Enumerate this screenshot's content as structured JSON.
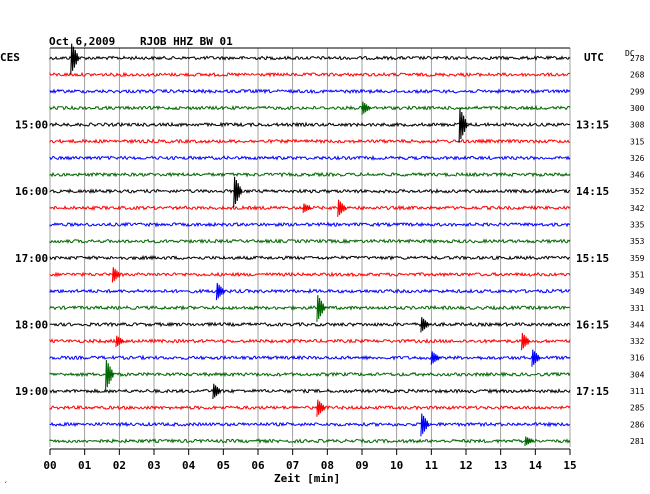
{
  "header": {
    "date": "Oct 6,2009",
    "station": "RJOB HHZ BW 01",
    "left_zone": "CES",
    "right_zone": "UTC",
    "dc_label": "DC"
  },
  "xlabel": "Zeit [min]",
  "footer_mark": "´",
  "chart_data": {
    "type": "line",
    "title": "Oct 6,2009   RJOB HHZ BW 01",
    "xlabel": "Zeit [min]",
    "xlim": [
      0,
      15
    ],
    "x_ticks": [
      "00",
      "01",
      "02",
      "03",
      "04",
      "05",
      "06",
      "07",
      "08",
      "09",
      "10",
      "11",
      "12",
      "13",
      "14",
      "15"
    ],
    "trace_colors": [
      "#000000",
      "#ff0000",
      "#0000ff",
      "#006600"
    ],
    "left_time_labels": [
      {
        "trace": 4,
        "text": "15:00"
      },
      {
        "trace": 8,
        "text": "16:00"
      },
      {
        "trace": 12,
        "text": "17:00"
      },
      {
        "trace": 16,
        "text": "18:00"
      },
      {
        "trace": 20,
        "text": "19:00"
      }
    ],
    "right_time_labels": [
      {
        "trace": 4,
        "text": "13:15"
      },
      {
        "trace": 8,
        "text": "14:15"
      },
      {
        "trace": 12,
        "text": "15:15"
      },
      {
        "trace": 16,
        "text": "16:15"
      },
      {
        "trace": 20,
        "text": "17:15"
      }
    ],
    "dc_values": [
      "278",
      "268",
      "299",
      "300",
      "308",
      "315",
      "326",
      "346",
      "352",
      "342",
      "335",
      "353",
      "359",
      "351",
      "349",
      "331",
      "344",
      "332",
      "316",
      "304",
      "311",
      "285",
      "286",
      "281"
    ],
    "events": [
      {
        "trace": 0,
        "x": 0.6,
        "amp": 16
      },
      {
        "trace": 3,
        "x": 9.0,
        "amp": 7
      },
      {
        "trace": 4,
        "x": 11.8,
        "amp": 18
      },
      {
        "trace": 8,
        "x": 5.3,
        "amp": 16
      },
      {
        "trace": 9,
        "x": 8.3,
        "amp": 9
      },
      {
        "trace": 9,
        "x": 7.3,
        "amp": 5
      },
      {
        "trace": 13,
        "x": 1.8,
        "amp": 8
      },
      {
        "trace": 14,
        "x": 4.8,
        "amp": 9
      },
      {
        "trace": 15,
        "x": 7.7,
        "amp": 14
      },
      {
        "trace": 16,
        "x": 10.7,
        "amp": 8
      },
      {
        "trace": 17,
        "x": 13.6,
        "amp": 9
      },
      {
        "trace": 17,
        "x": 1.9,
        "amp": 6
      },
      {
        "trace": 18,
        "x": 11.0,
        "amp": 7
      },
      {
        "trace": 18,
        "x": 13.9,
        "amp": 9
      },
      {
        "trace": 19,
        "x": 1.6,
        "amp": 16
      },
      {
        "trace": 20,
        "x": 4.7,
        "amp": 8
      },
      {
        "trace": 21,
        "x": 7.7,
        "amp": 9
      },
      {
        "trace": 22,
        "x": 10.7,
        "amp": 12
      },
      {
        "trace": 23,
        "x": 13.7,
        "amp": 5
      }
    ]
  }
}
